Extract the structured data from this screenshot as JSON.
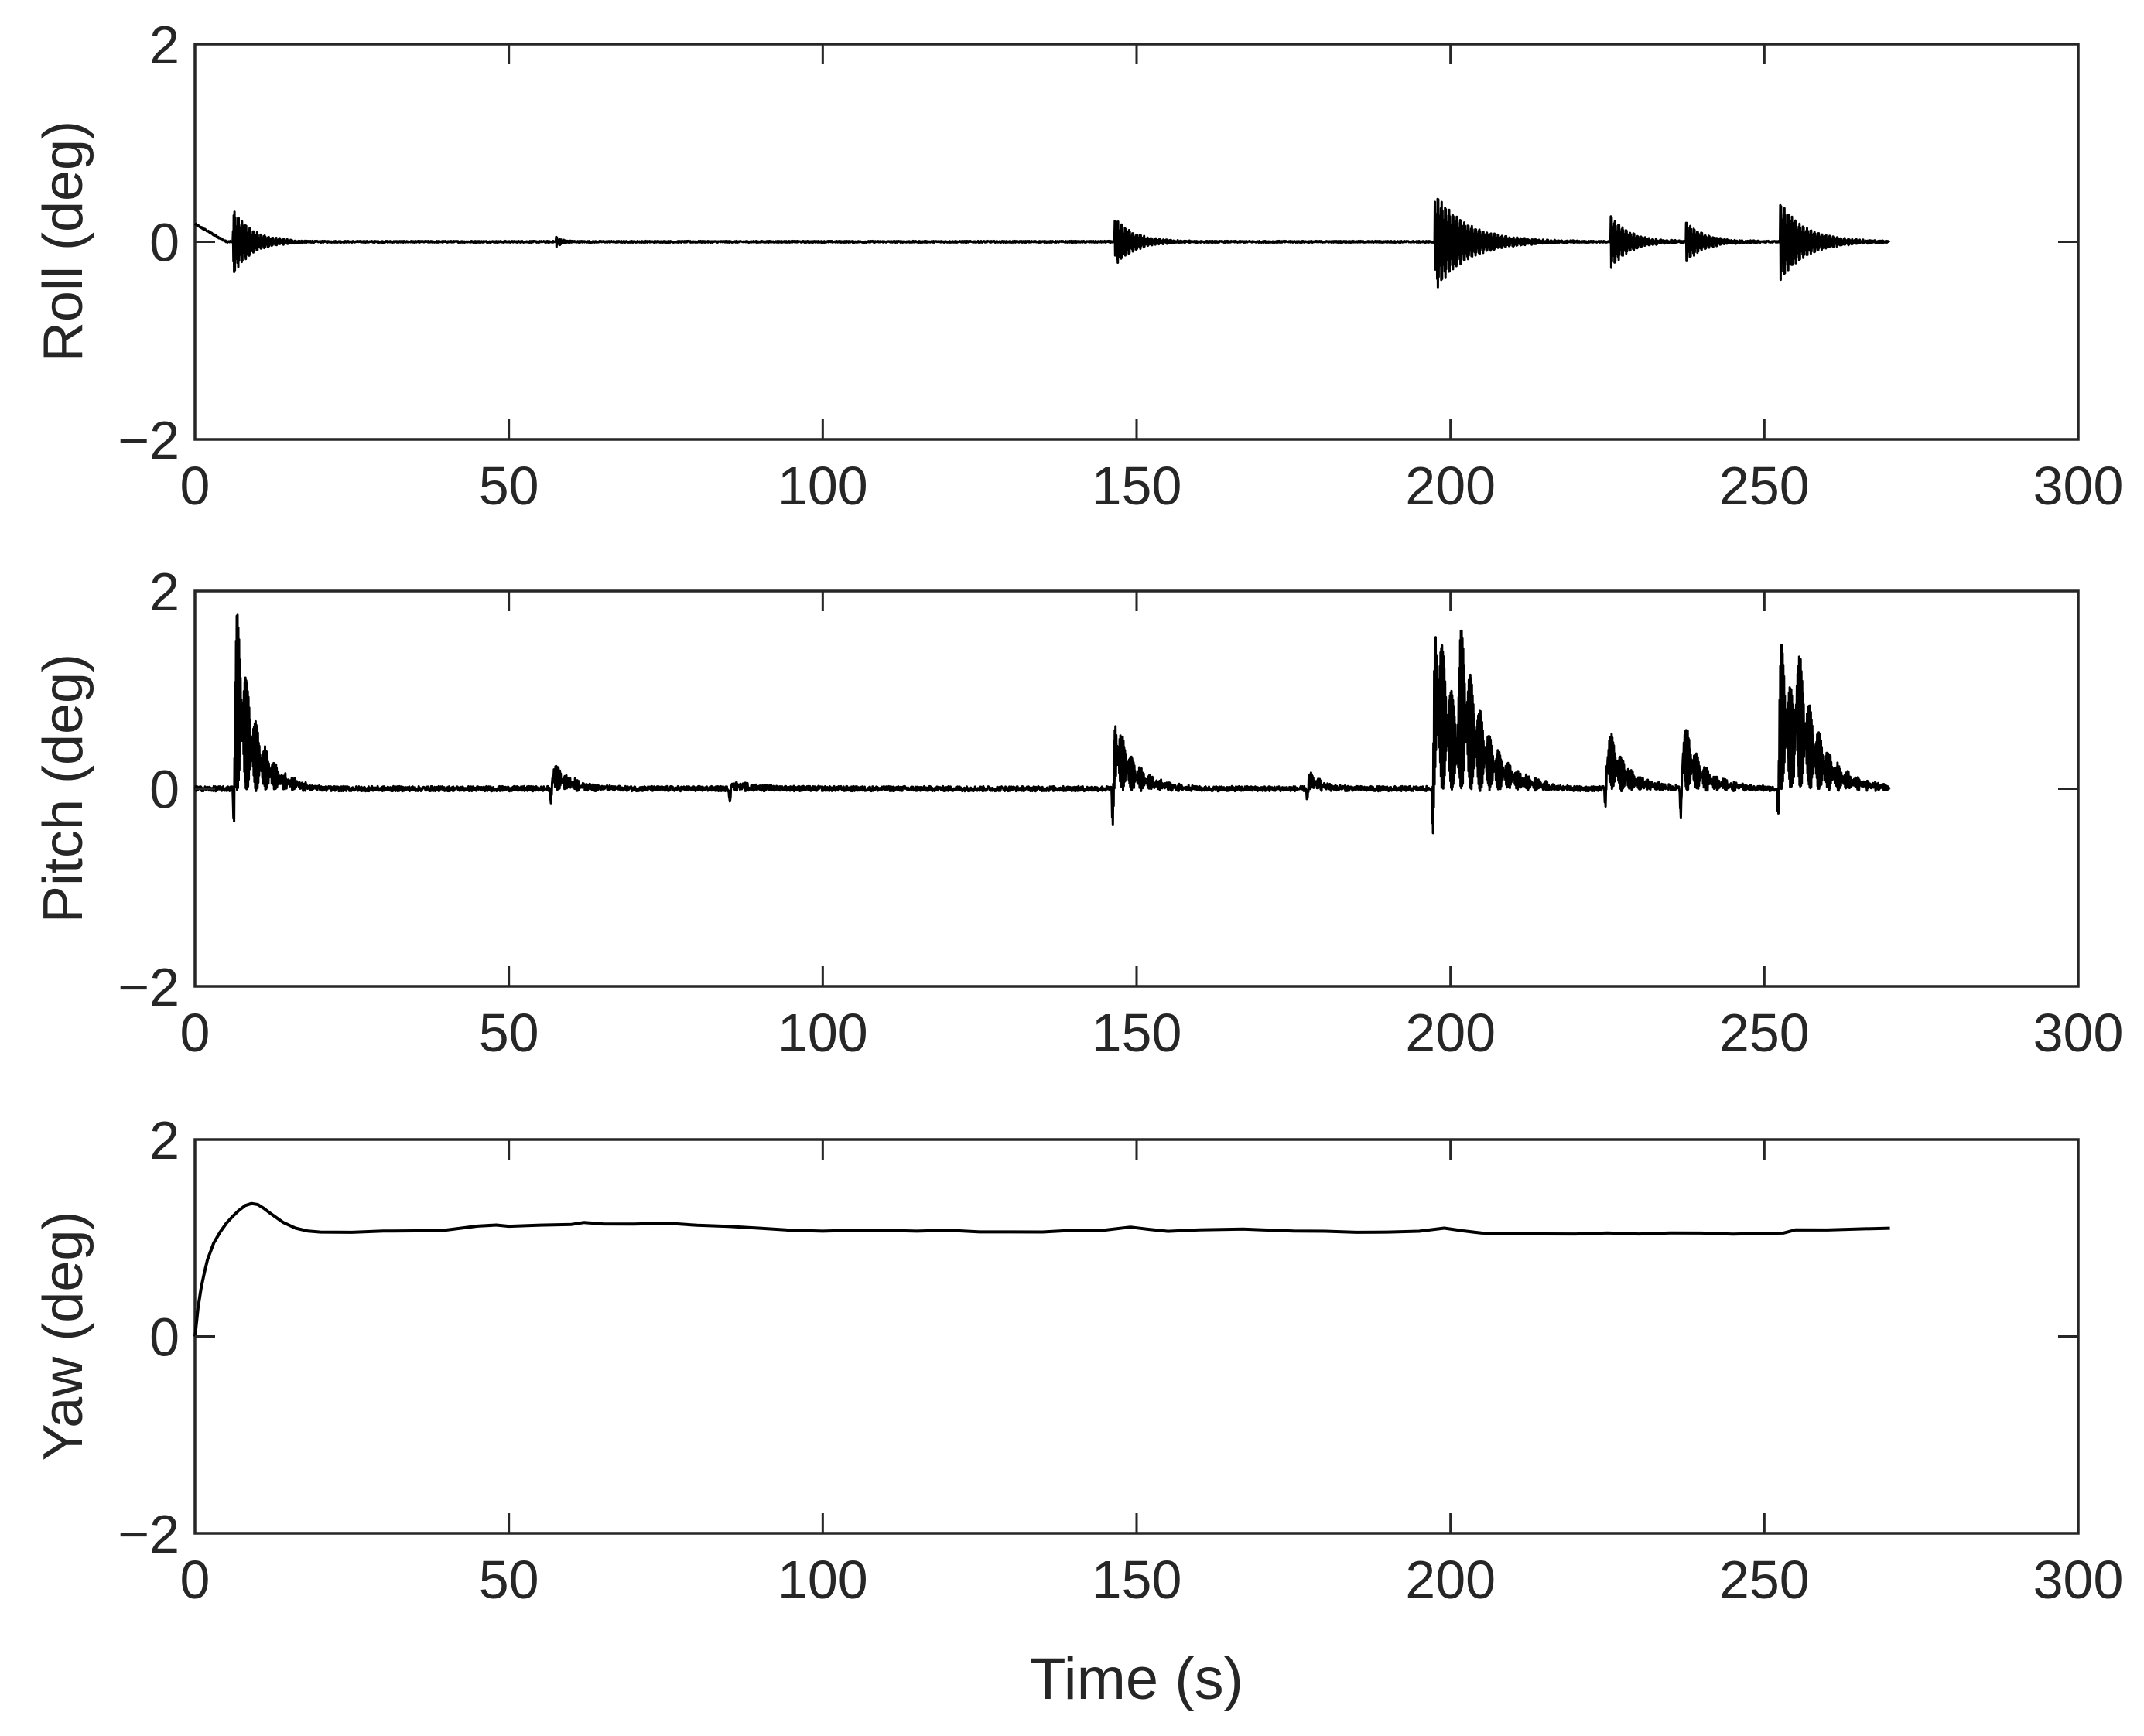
{
  "chart_data": [
    {
      "type": "line",
      "ylabel": "Roll (deg)",
      "xlabel": "",
      "xlim": [
        0,
        300
      ],
      "ylim": [
        -2,
        2
      ],
      "xticks": [
        "0",
        "50",
        "100",
        "150",
        "200",
        "250",
        "300"
      ],
      "yticks": [
        "−2",
        "0",
        "2"
      ],
      "grid": false,
      "series": [
        {
          "style": "transient_oscillation",
          "color": "#000000",
          "baseline": 0,
          "x_end": 270,
          "noise": 0.008,
          "initial": {
            "t_end": 5,
            "start": 0.18,
            "end": 0.0
          },
          "bursts": [
            {
              "t": 6,
              "amp": 0.34,
              "decay": 3
            },
            {
              "t": 57.5,
              "amp": 0.05,
              "decay": 1
            },
            {
              "t": 146.5,
              "amp": 0.25,
              "decay": 3
            },
            {
              "t": 197.5,
              "amp": 0.5,
              "decay": 5
            },
            {
              "t": 225.5,
              "amp": 0.27,
              "decay": 3
            },
            {
              "t": 237.5,
              "amp": 0.2,
              "decay": 3
            },
            {
              "t": 252.5,
              "amp": 0.4,
              "decay": 4
            }
          ]
        }
      ]
    },
    {
      "type": "line",
      "ylabel": "Pitch (deg)",
      "xlabel": "",
      "xlim": [
        0,
        300
      ],
      "ylim": [
        -2,
        2
      ],
      "xticks": [
        "0",
        "50",
        "100",
        "150",
        "200",
        "250",
        "300"
      ],
      "yticks": [
        "−2",
        "0",
        "2"
      ],
      "grid": false,
      "series": [
        {
          "style": "pulse_bursts",
          "color": "#000000",
          "baseline": 0,
          "x_end": 270,
          "noise": 0.025,
          "bursts": [
            {
              "t": 6,
              "peak": 1.75,
              "min": -0.55,
              "decay": 3
            },
            {
              "t": 56.5,
              "peak": 0.25,
              "min": -0.15,
              "decay": 3
            },
            {
              "t": 85,
              "peak": 0.06,
              "min": -0.12,
              "decay": 4
            },
            {
              "t": 146,
              "peak": 0.72,
              "min": -0.38,
              "decay": 3
            },
            {
              "t": 177,
              "peak": 0.15,
              "min": -0.12,
              "decay": 2
            },
            {
              "t": 197,
              "peak": 1.8,
              "min": -0.48,
              "decay": 4
            },
            {
              "t": 201,
              "peak": 0.95,
              "min": -0.1,
              "decay": 4
            },
            {
              "t": 224.5,
              "peak": 0.6,
              "min": -0.22,
              "decay": 3
            },
            {
              "t": 236.5,
              "peak": 0.65,
              "min": -0.35,
              "decay": 3
            },
            {
              "t": 252,
              "peak": 1.45,
              "min": -0.42,
              "decay": 4
            },
            {
              "t": 254.5,
              "peak": 0.7,
              "min": -0.1,
              "decay": 3
            }
          ]
        }
      ]
    },
    {
      "type": "line",
      "ylabel": "Yaw (deg)",
      "xlabel": "Time (s)",
      "xlim": [
        0,
        300
      ],
      "ylim": [
        -2,
        2
      ],
      "xticks": [
        "0",
        "50",
        "100",
        "150",
        "200",
        "250",
        "300"
      ],
      "yticks": [
        "−2",
        "0",
        "2"
      ],
      "grid": false,
      "series": [
        {
          "style": "polyline",
          "color": "#000000",
          "x": [
            0,
            0.5,
            1,
            1.5,
            2,
            3,
            4,
            5,
            6,
            7,
            8,
            9,
            10,
            11,
            12,
            14,
            16,
            18,
            20,
            25,
            30,
            35,
            40,
            45,
            48,
            50,
            55,
            60,
            62,
            65,
            70,
            75,
            80,
            85,
            90,
            95,
            100,
            105,
            110,
            115,
            120,
            125,
            130,
            135,
            140,
            145,
            149,
            152,
            155,
            160,
            167,
            170,
            175,
            180,
            185,
            190,
            195,
            199,
            202,
            205,
            210,
            215,
            220,
            225,
            230,
            235,
            240,
            245,
            250,
            253,
            255,
            260,
            265,
            270
          ],
          "y": [
            0.0,
            0.3,
            0.5,
            0.65,
            0.78,
            0.95,
            1.06,
            1.15,
            1.22,
            1.28,
            1.33,
            1.35,
            1.34,
            1.3,
            1.25,
            1.16,
            1.1,
            1.07,
            1.06,
            1.06,
            1.07,
            1.07,
            1.08,
            1.12,
            1.13,
            1.12,
            1.13,
            1.14,
            1.16,
            1.14,
            1.14,
            1.15,
            1.13,
            1.12,
            1.1,
            1.08,
            1.07,
            1.08,
            1.08,
            1.07,
            1.08,
            1.06,
            1.06,
            1.06,
            1.08,
            1.08,
            1.11,
            1.09,
            1.07,
            1.08,
            1.09,
            1.08,
            1.07,
            1.07,
            1.06,
            1.06,
            1.07,
            1.1,
            1.07,
            1.05,
            1.04,
            1.04,
            1.04,
            1.05,
            1.04,
            1.05,
            1.05,
            1.04,
            1.05,
            1.05,
            1.08,
            1.08,
            1.09,
            1.1
          ]
        }
      ]
    }
  ]
}
